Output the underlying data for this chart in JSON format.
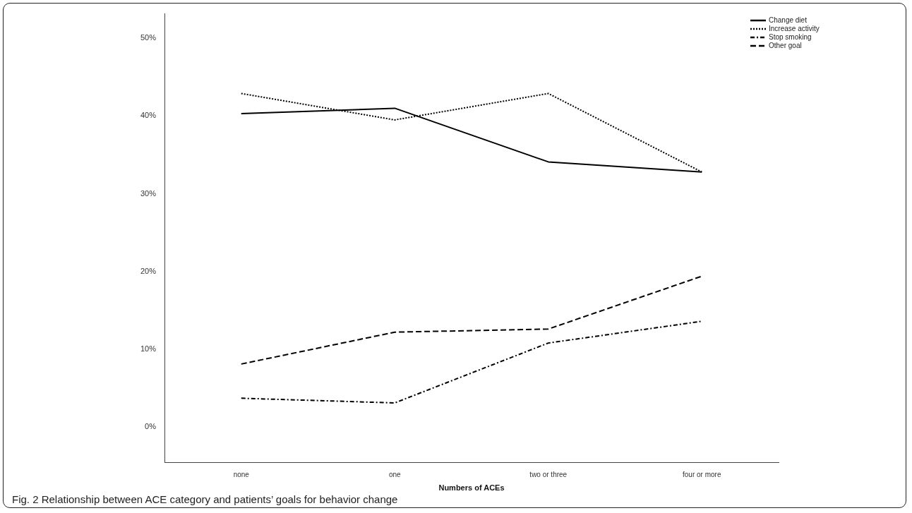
{
  "chart_data": {
    "type": "line",
    "xlabel": "Numbers of ACEs",
    "categories": [
      "none",
      "one",
      "two or three",
      "four or more"
    ],
    "series": [
      {
        "name": "Change diet",
        "color": "#000000",
        "line_style": "solid",
        "values": [
          40.3,
          41.0,
          34.1,
          32.8
        ]
      },
      {
        "name": "Increase activity",
        "color": "#000000",
        "line_style": "dotted",
        "values": [
          42.9,
          39.5,
          42.9,
          32.8
        ]
      },
      {
        "name": "Stop smoking",
        "color": "#000000",
        "line_style": "dashdot",
        "values": [
          3.7,
          3.1,
          10.8,
          13.6
        ]
      },
      {
        "name": "Other goal",
        "color": "#000000",
        "line_style": "dashed",
        "values": [
          8.1,
          12.2,
          12.6,
          19.4
        ]
      }
    ],
    "ylim": [
      -4.6,
      53.2
    ],
    "yticks": [
      {
        "value": 0,
        "label": "0%"
      },
      {
        "value": 10,
        "label": "10%"
      },
      {
        "value": 20,
        "label": "20%"
      },
      {
        "value": 30,
        "label": "30%"
      },
      {
        "value": 40,
        "label": "40%"
      },
      {
        "value": 50,
        "label": "50%"
      }
    ],
    "grid": false,
    "legend": "top right",
    "marker": "none",
    "annotations": [
      "Fig. 2 Relationship between ACE category and patients’ goals for behavior change"
    ]
  }
}
